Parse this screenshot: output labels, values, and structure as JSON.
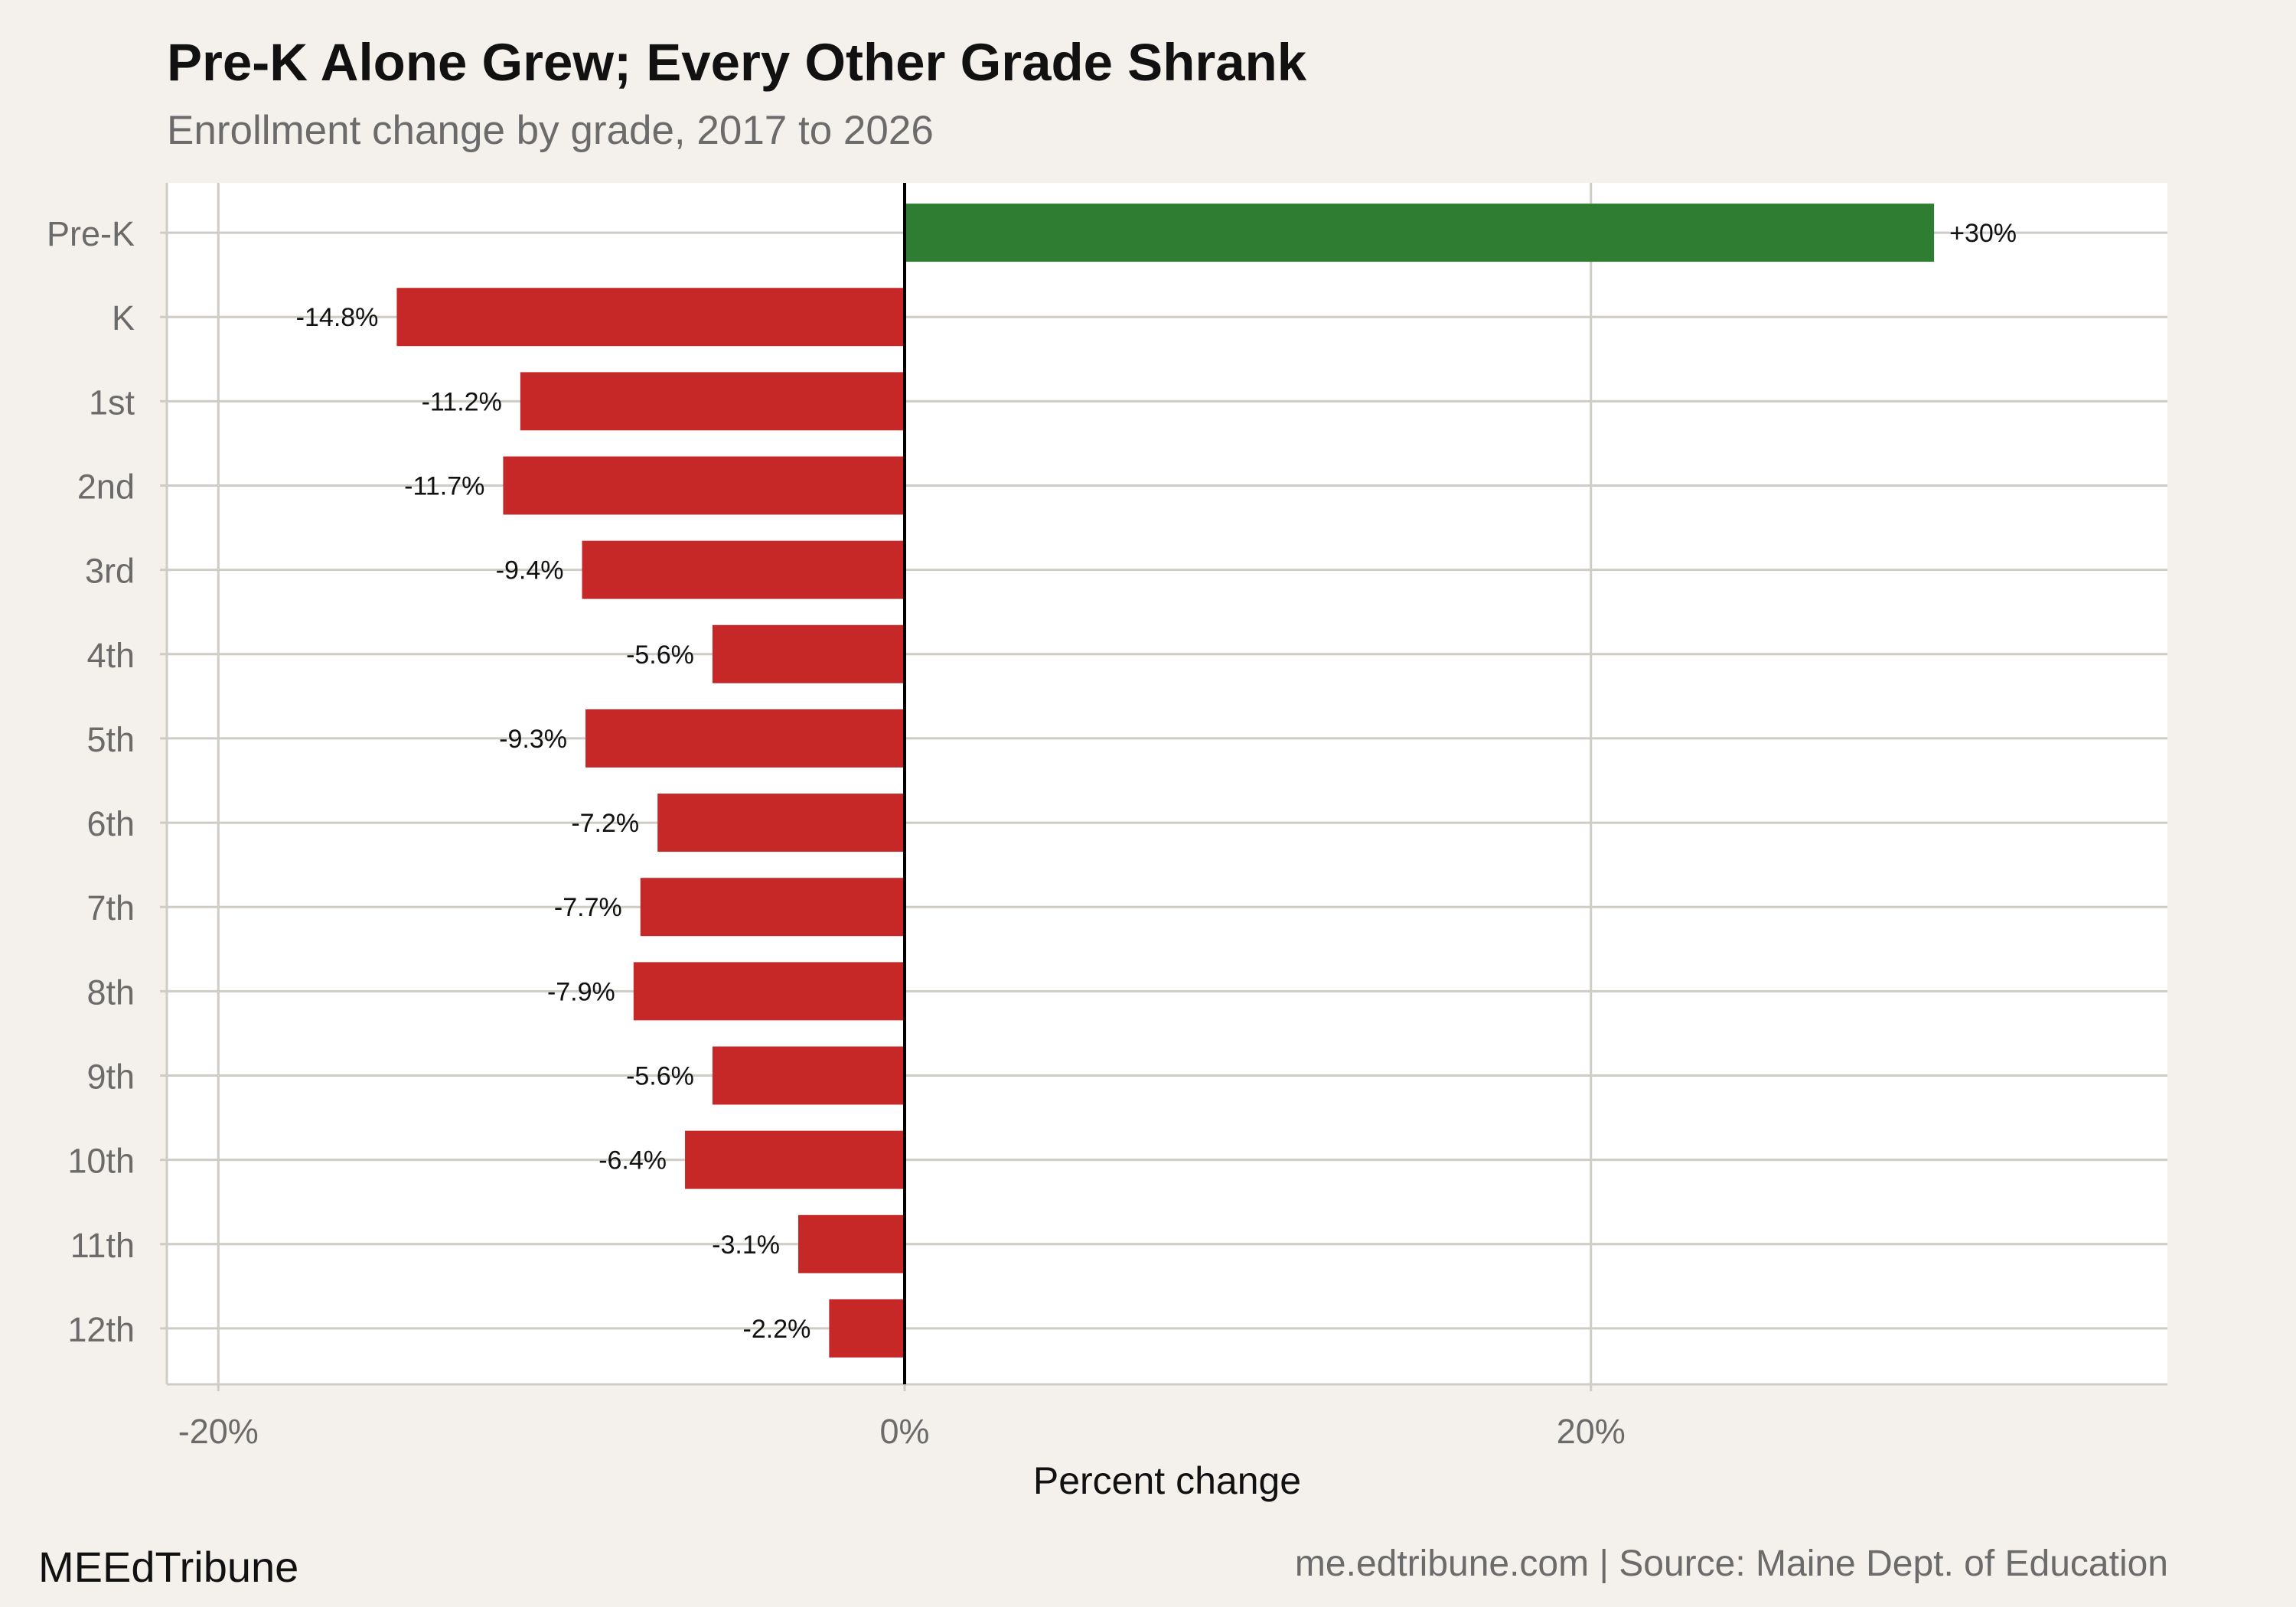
{
  "header": {
    "title": "Pre-K Alone Grew; Every Other Grade Shrank",
    "subtitle": "Enrollment change by grade, 2017 to 2026"
  },
  "footer": {
    "brand": "MEEdTribune",
    "source": "me.edtribune.com | Source: Maine Dept. of Education"
  },
  "colors": {
    "background": "#f4f1ec",
    "panel": "#ffffff",
    "positive": "#2e7d32",
    "negative": "#c62828",
    "grid": "#cfccc6",
    "zero_line": "#000000",
    "axis_text": "#6b6b6b"
  },
  "chart_data": {
    "type": "bar",
    "orientation": "horizontal",
    "categories": [
      "Pre-K",
      "K",
      "1st",
      "2nd",
      "3rd",
      "4th",
      "5th",
      "6th",
      "7th",
      "8th",
      "9th",
      "10th",
      "11th",
      "12th"
    ],
    "values": [
      30,
      -14.8,
      -11.2,
      -11.7,
      -9.4,
      -5.6,
      -9.3,
      -7.2,
      -7.7,
      -7.9,
      -5.6,
      -6.4,
      -3.1,
      -2.2
    ],
    "data_labels": [
      "+30%",
      "-14.8%",
      "-11.2%",
      "-11.7%",
      "-9.4%",
      "-5.6%",
      "-9.3%",
      "-7.2%",
      "-7.7%",
      "-7.9%",
      "-5.6%",
      "-6.4%",
      "-3.1%",
      "-2.2%"
    ],
    "xlabel": "Percent change",
    "ylabel": "",
    "xlim": [
      -21.5,
      36.8
    ],
    "xticks": [
      -20,
      0,
      20
    ],
    "xtick_labels": [
      "-20%",
      "0%",
      "20%"
    ],
    "grid": true,
    "legend": "none"
  }
}
